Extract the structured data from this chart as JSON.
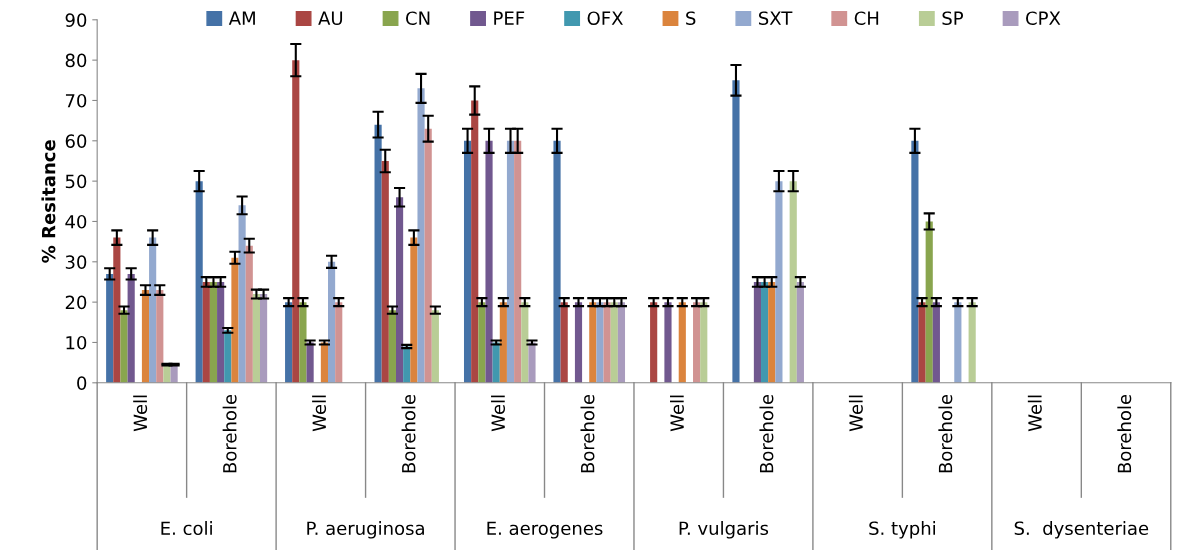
{
  "chart_data": {
    "type": "bar",
    "ylabel": "% Resitance",
    "categories": [
      "Well",
      "Borehole",
      "Well",
      "Borehole",
      "Well",
      "Borehole",
      "Well",
      "Borehole",
      "Well",
      "Borehole",
      "Well",
      "Borehole"
    ],
    "annotations": [
      "E. coli",
      "P. aeruginosa",
      "E. aerogenes",
      "P. vulgaris",
      "S. typhi",
      "S.  dysenteriae"
    ],
    "ylim": [
      0,
      90
    ],
    "yticks": [
      0,
      10,
      20,
      30,
      40,
      50,
      60,
      70,
      80,
      90
    ],
    "grid": false,
    "legend": "top",
    "series": [
      {
        "name": "AM",
        "color": "#4572a7",
        "values": [
          27,
          50,
          20,
          64,
          60,
          60,
          null,
          75,
          null,
          60,
          null,
          null
        ],
        "errors": [
          1.4,
          2.5,
          1,
          3.2,
          3,
          3,
          null,
          3.8,
          null,
          3,
          null,
          null
        ]
      },
      {
        "name": "AU",
        "color": "#aa4643",
        "values": [
          36,
          25,
          80,
          55,
          70,
          20,
          20,
          null,
          null,
          20,
          null,
          null
        ],
        "errors": [
          1.8,
          1.2,
          4,
          2.8,
          3.5,
          1,
          1,
          null,
          null,
          1,
          null,
          null
        ]
      },
      {
        "name": "CN",
        "color": "#89a54e",
        "values": [
          18,
          25,
          20,
          18,
          20,
          null,
          null,
          null,
          null,
          40,
          null,
          null
        ],
        "errors": [
          0.9,
          1.2,
          1,
          0.9,
          1,
          null,
          null,
          null,
          null,
          2,
          null,
          null
        ]
      },
      {
        "name": "PEF",
        "color": "#71588f",
        "values": [
          27,
          25,
          10,
          46,
          60,
          20,
          20,
          25,
          null,
          20,
          null,
          null
        ],
        "errors": [
          1.4,
          1.2,
          0.5,
          2.3,
          3,
          1,
          1,
          1.2,
          null,
          1,
          null,
          null
        ]
      },
      {
        "name": "OFX",
        "color": "#4198af",
        "values": [
          null,
          13,
          null,
          9,
          10,
          null,
          null,
          25,
          null,
          null,
          null,
          null
        ],
        "errors": [
          null,
          0.6,
          null,
          0.4,
          0.5,
          null,
          null,
          1.2,
          null,
          null,
          null,
          null
        ]
      },
      {
        "name": "S",
        "color": "#db843d",
        "values": [
          23,
          31,
          10,
          36,
          20,
          20,
          20,
          25,
          null,
          null,
          null,
          null
        ],
        "errors": [
          1.2,
          1.5,
          0.5,
          1.8,
          1,
          1,
          1,
          1.2,
          null,
          null,
          null,
          null
        ]
      },
      {
        "name": "SXT",
        "color": "#93a9cf",
        "values": [
          36,
          44,
          30,
          73,
          60,
          20,
          null,
          50,
          null,
          20,
          null,
          null
        ],
        "errors": [
          1.8,
          2.2,
          1.5,
          3.6,
          3,
          1,
          null,
          2.5,
          null,
          1,
          null,
          null
        ]
      },
      {
        "name": "CH",
        "color": "#d19392",
        "values": [
          23,
          34,
          20,
          63,
          60,
          20,
          20,
          null,
          null,
          null,
          null,
          null
        ],
        "errors": [
          1.2,
          1.7,
          1,
          3.2,
          3,
          1,
          1,
          null,
          null,
          null,
          null,
          null
        ]
      },
      {
        "name": "SP",
        "color": "#b9cd96",
        "values": [
          4.5,
          22,
          null,
          18,
          20,
          20,
          20,
          50,
          null,
          20,
          null,
          null
        ],
        "errors": [
          0.2,
          1.1,
          null,
          0.9,
          1,
          1,
          1,
          2.5,
          null,
          1,
          null,
          null
        ]
      },
      {
        "name": "CPX",
        "color": "#a99bbd",
        "values": [
          4.5,
          22,
          null,
          null,
          10,
          20,
          null,
          25,
          null,
          null,
          null,
          null
        ],
        "errors": [
          0.2,
          1.1,
          null,
          null,
          0.5,
          1,
          null,
          1.2,
          null,
          null,
          null,
          null
        ]
      }
    ]
  }
}
